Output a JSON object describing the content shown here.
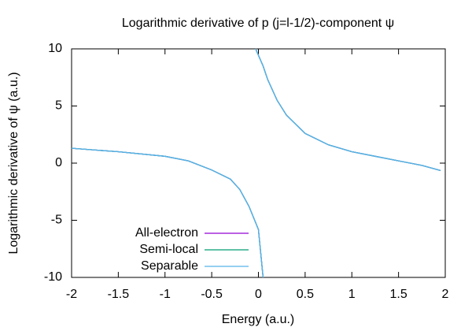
{
  "chart_data": {
    "type": "line",
    "title": "Logarithmic derivative of p (j=l-1/2)-component ψ",
    "x_label": "Energy (a.u.)",
    "y_label": "Logarithmic derivative of ψ (a.u.)",
    "x": [
      -2,
      -1.5,
      -1,
      -0.75,
      -0.5,
      -0.3,
      -0.2,
      -0.1,
      0,
      0.05,
      0.01,
      -0.03,
      0.05,
      0.1,
      0.2,
      0.3,
      0.5,
      0.75,
      1,
      1.25,
      1.5,
      1.75,
      1.95
    ],
    "series": [
      {
        "name": "All-electron",
        "color": "#9400d3",
        "values": [
          1.3,
          1.0,
          0.6,
          0.2,
          -0.6,
          -1.4,
          -2.3,
          -3.8,
          -5.8,
          -10,
          null,
          10,
          8.5,
          7.3,
          5.5,
          4.2,
          2.6,
          1.6,
          1.0,
          0.6,
          0.2,
          -0.2,
          -0.65
        ]
      },
      {
        "name": "Semi-local",
        "color": "#009e73",
        "values": [
          1.3,
          1.0,
          0.6,
          0.2,
          -0.6,
          -1.4,
          -2.3,
          -3.8,
          -5.8,
          -10,
          null,
          10,
          8.5,
          7.3,
          5.5,
          4.2,
          2.6,
          1.6,
          1.0,
          0.6,
          0.2,
          -0.2,
          -0.65
        ]
      },
      {
        "name": "Separable",
        "color": "#56b4e9",
        "values": [
          1.3,
          1.0,
          0.6,
          0.2,
          -0.6,
          -1.4,
          -2.3,
          -3.8,
          -5.8,
          -10,
          null,
          10,
          8.5,
          7.3,
          5.5,
          4.2,
          2.6,
          1.6,
          1.0,
          0.6,
          0.2,
          -0.2,
          -0.65
        ]
      }
    ],
    "xlim": [
      -2,
      2
    ],
    "ylim": [
      -10,
      10
    ],
    "xticks": [
      -2,
      -1.5,
      -1,
      -0.5,
      0,
      0.5,
      1,
      1.5,
      2
    ],
    "yticks": [
      -10,
      -5,
      0,
      5,
      10
    ],
    "grid": false,
    "legend": "bottom-left"
  }
}
